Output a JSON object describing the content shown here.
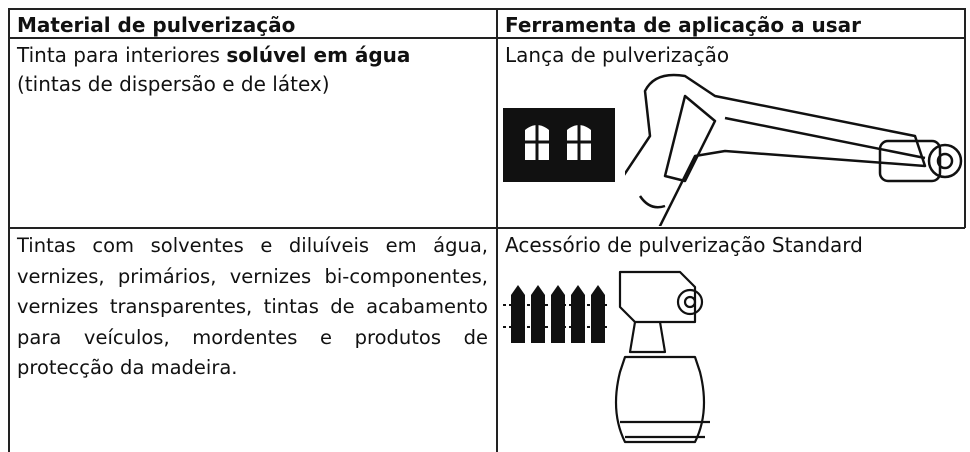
{
  "table": {
    "header": [
      "Material de pulverização",
      "Ferramenta de aplicação a usar"
    ],
    "rows": [
      {
        "material": {
          "text_before": "Tinta para interiores",
          "bold": "solúvel em água",
          "text_after": "(tintas de dispersão e de látex)"
        },
        "tool": "Lança de pulverização"
      },
      {
        "material": {
          "text": "Tintas com solventes e diluíveis em água, vernizes, primários, vernizes bi-componentes, vernizes transparentes, tintas de acabamento para veículos, mordentes e produtos de protecção da madeira."
        },
        "tool": "Acessório de pulverização Standard"
      }
    ]
  }
}
